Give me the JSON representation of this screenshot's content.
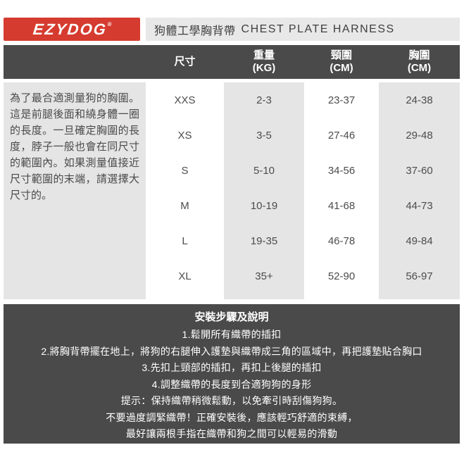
{
  "colors": {
    "brand_red": "#d63b2f",
    "bar_dark": "#4a4a4a",
    "panel_gray": "#e5e5e5",
    "title_bar_gray": "#e8e8e8"
  },
  "header": {
    "logo_text": "EZYDOG",
    "logo_reg_mark": "®",
    "title_zh": "狗體工學胸背帶",
    "title_en": "CHEST PLATE HARNESS"
  },
  "measurement_note": "為了最合適測量狗的胸圍。這是前腿後面和繞身體一圈的長度。一旦確定胸圍的長度，脖子一般也會在同尺寸的範圍內。如果測量值接近尺寸範圍的末端，請選擇大尺寸的。",
  "size_table": {
    "columns": [
      {
        "label": "尺寸",
        "sub": ""
      },
      {
        "label": "重量",
        "sub": "(KG)"
      },
      {
        "label": "頸圍",
        "sub": "(CM)"
      },
      {
        "label": "胸圍",
        "sub": "(CM)"
      }
    ],
    "rows": [
      {
        "size": "XXS",
        "weight": "2-3",
        "neck": "23-37",
        "chest": "24-38"
      },
      {
        "size": "XS",
        "weight": "3-5",
        "neck": "27-46",
        "chest": "29-48"
      },
      {
        "size": "S",
        "weight": "5-10",
        "neck": "34-56",
        "chest": "37-60"
      },
      {
        "size": "M",
        "weight": "10-19",
        "neck": "41-68",
        "chest": "44-73"
      },
      {
        "size": "L",
        "weight": "19-35",
        "neck": "46-78",
        "chest": "49-84"
      },
      {
        "size": "XL",
        "weight": "35+",
        "neck": "52-90",
        "chest": "56-97"
      }
    ]
  },
  "instructions": {
    "title": "安裝步驟及說明",
    "lines": [
      "1.鬆開所有織帶的插扣",
      "2.將胸背帶擺在地上，將狗的右腿伸入護墊與織帶成三角的區域中，再把護墊貼合胸口",
      "3.先扣上頸部的插扣，再扣上後腿的插扣",
      "4.調整織帶的長度到合適狗狗的身形",
      "提示：保持織帶稍微鬆動，以免牽引時刮傷狗狗。",
      "不要過度調緊織帶！正確安裝後，應該輕巧舒適的束縛，",
      "最好讓兩根手指在織帶和狗之間可以輕易的滑動"
    ]
  }
}
